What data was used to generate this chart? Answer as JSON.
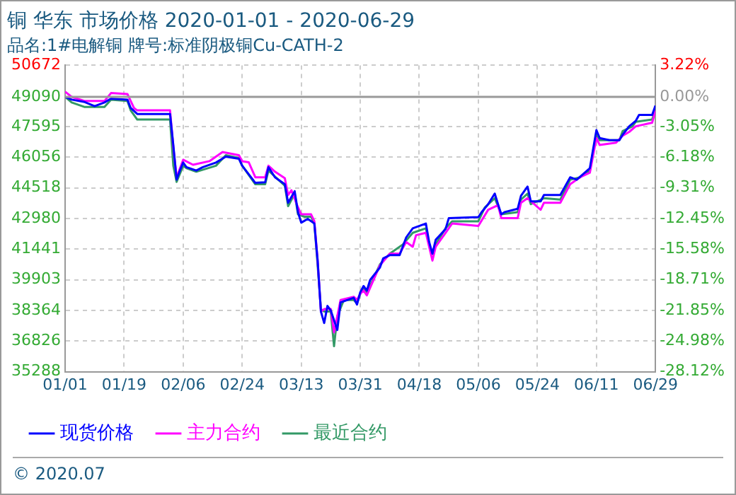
{
  "chart_data": {
    "type": "line",
    "title": "铜 华东 市场价格 2020-01-01 - 2020-06-29",
    "subtitle": "品名:1#电解铜 牌号:标准阴极铜Cu-CATH-2",
    "annotations": [
      "© 2020.07"
    ],
    "xlim": [
      "2020-01-01",
      "2020-06-29"
    ],
    "xticks": [
      {
        "value": "2020-01-01",
        "label": "01/01"
      },
      {
        "value": "2020-01-19",
        "label": "01/19"
      },
      {
        "value": "2020-02-06",
        "label": "02/06"
      },
      {
        "value": "2020-02-24",
        "label": "02/24"
      },
      {
        "value": "2020-03-13",
        "label": "03/13"
      },
      {
        "value": "2020-03-31",
        "label": "03/31"
      },
      {
        "value": "2020-04-18",
        "label": "04/18"
      },
      {
        "value": "2020-05-06",
        "label": "05/06"
      },
      {
        "value": "2020-05-24",
        "label": "05/24"
      },
      {
        "value": "2020-06-11",
        "label": "06/11"
      },
      {
        "value": "2020-06-29",
        "label": "06/29"
      }
    ],
    "ylim": [
      35288,
      50672
    ],
    "yticks": [
      35288,
      36826,
      38364,
      39903,
      41441,
      42980,
      44518,
      46056,
      47595,
      49090,
      50672
    ],
    "y2lim": [
      -28.12,
      3.22
    ],
    "y2ticks": [
      {
        "value": -28.12,
        "label": "-28.12%"
      },
      {
        "value": -24.98,
        "label": "-24.98%"
      },
      {
        "value": -21.85,
        "label": "-21.85%"
      },
      {
        "value": -18.71,
        "label": "-18.71%"
      },
      {
        "value": -15.58,
        "label": "-15.58%"
      },
      {
        "value": -12.45,
        "label": "-12.45%"
      },
      {
        "value": -9.31,
        "label": "-9.31%"
      },
      {
        "value": -6.18,
        "label": "-6.18%"
      },
      {
        "value": -3.05,
        "label": "-3.05%"
      },
      {
        "value": 0,
        "label": "0.00%"
      },
      {
        "value": 3.22,
        "label": "3.22%"
      }
    ],
    "ref_lines": [
      {
        "axis": "y2",
        "value": 0,
        "color": "#999999",
        "line_style": "solid"
      }
    ],
    "grid": true,
    "legend": "bottom",
    "marker": "none",
    "line_style": "solid",
    "series": [
      {
        "name": "现货价格",
        "color": "#0000ff",
        "x": [
          "2020-01-01",
          "2020-01-03",
          "2020-01-07",
          "2020-01-10",
          "2020-01-13",
          "2020-01-15",
          "2020-01-20",
          "2020-01-21",
          "2020-01-23",
          "2020-02-02",
          "2020-02-03",
          "2020-02-04",
          "2020-02-05",
          "2020-02-06",
          "2020-02-07",
          "2020-02-10",
          "2020-02-12",
          "2020-02-16",
          "2020-02-19",
          "2020-02-23",
          "2020-02-24",
          "2020-02-28",
          "2020-03-02",
          "2020-03-03",
          "2020-03-05",
          "2020-03-08",
          "2020-03-09",
          "2020-03-11",
          "2020-03-12",
          "2020-03-13",
          "2020-03-15",
          "2020-03-17",
          "2020-03-18",
          "2020-03-19",
          "2020-03-20",
          "2020-03-21",
          "2020-03-22",
          "2020-03-24",
          "2020-03-25",
          "2020-03-29",
          "2020-03-30",
          "2020-03-31",
          "2020-04-01",
          "2020-04-02",
          "2020-04-03",
          "2020-04-06",
          "2020-04-07",
          "2020-04-09",
          "2020-04-12",
          "2020-04-14",
          "2020-04-16",
          "2020-04-20",
          "2020-04-21",
          "2020-04-22",
          "2020-04-23",
          "2020-04-26",
          "2020-04-27",
          "2020-05-06",
          "2020-05-07",
          "2020-05-09",
          "2020-05-11",
          "2020-05-12",
          "2020-05-13",
          "2020-05-14",
          "2020-05-18",
          "2020-05-19",
          "2020-05-21",
          "2020-05-22",
          "2020-05-25",
          "2020-05-26",
          "2020-05-31",
          "2020-06-03",
          "2020-06-05",
          "2020-06-09",
          "2020-06-11",
          "2020-06-12",
          "2020-06-15",
          "2020-06-18",
          "2020-06-19",
          "2020-06-21",
          "2020-06-23",
          "2020-06-24",
          "2020-06-28",
          "2020-06-29"
        ],
        "values": [
          49090,
          48950,
          48830,
          48620,
          48810,
          49000,
          48950,
          48530,
          48230,
          48230,
          46670,
          44930,
          45390,
          45790,
          45560,
          45390,
          45560,
          45790,
          46090,
          45980,
          45630,
          44770,
          44800,
          45560,
          45050,
          44700,
          43770,
          44350,
          43300,
          42770,
          42960,
          42730,
          40870,
          38310,
          37730,
          38590,
          38360,
          37380,
          38770,
          39000,
          38660,
          39280,
          39590,
          39360,
          39890,
          40520,
          40980,
          41140,
          41140,
          42030,
          42490,
          42730,
          41800,
          41210,
          41910,
          42450,
          43000,
          43050,
          43300,
          43700,
          44230,
          43700,
          43190,
          43300,
          43470,
          44120,
          44580,
          43840,
          43840,
          44160,
          44160,
          45050,
          44930,
          45510,
          47420,
          47020,
          46910,
          46910,
          47190,
          47610,
          47880,
          48180,
          48180,
          48650
        ]
      },
      {
        "name": "主力合约",
        "color": "#ff00ff",
        "x": [
          "2020-01-01",
          "2020-01-03",
          "2020-01-07",
          "2020-01-13",
          "2020-01-15",
          "2020-01-20",
          "2020-01-22",
          "2020-01-23",
          "2020-02-02",
          "2020-02-03",
          "2020-02-04",
          "2020-02-06",
          "2020-02-09",
          "2020-02-14",
          "2020-02-18",
          "2020-02-23",
          "2020-02-24",
          "2020-02-26",
          "2020-02-28",
          "2020-03-02",
          "2020-03-03",
          "2020-03-05",
          "2020-03-08",
          "2020-03-09",
          "2020-03-10",
          "2020-03-12",
          "2020-03-13",
          "2020-03-16",
          "2020-03-17",
          "2020-03-18",
          "2020-03-19",
          "2020-03-20",
          "2020-03-22",
          "2020-03-23",
          "2020-03-25",
          "2020-03-29",
          "2020-03-30",
          "2020-03-31",
          "2020-04-01",
          "2020-04-02",
          "2020-04-06",
          "2020-04-09",
          "2020-04-12",
          "2020-04-14",
          "2020-04-16",
          "2020-04-17",
          "2020-04-20",
          "2020-04-21",
          "2020-04-22",
          "2020-04-23",
          "2020-04-26",
          "2020-04-28",
          "2020-05-06",
          "2020-05-09",
          "2020-05-12",
          "2020-05-13",
          "2020-05-18",
          "2020-05-19",
          "2020-05-21",
          "2020-05-25",
          "2020-05-26",
          "2020-05-31",
          "2020-06-03",
          "2020-06-06",
          "2020-06-09",
          "2020-06-11",
          "2020-06-12",
          "2020-06-17",
          "2020-06-19",
          "2020-06-21",
          "2020-06-23",
          "2020-06-28",
          "2020-06-29"
        ],
        "values": [
          49350,
          49090,
          48880,
          48880,
          49280,
          49230,
          48530,
          48410,
          48410,
          46560,
          45050,
          45930,
          45680,
          45860,
          46320,
          46160,
          45860,
          45800,
          45050,
          45050,
          45630,
          45330,
          45000,
          44160,
          44400,
          43540,
          43190,
          43190,
          42840,
          40870,
          38310,
          38430,
          38430,
          37260,
          38890,
          39050,
          38890,
          39200,
          39360,
          39120,
          40630,
          41210,
          41210,
          41800,
          41560,
          42140,
          42260,
          41560,
          40870,
          41560,
          42260,
          42730,
          42610,
          43420,
          43650,
          43000,
          43000,
          43770,
          44000,
          43420,
          43770,
          43770,
          44700,
          45050,
          45280,
          47020,
          46670,
          46790,
          47140,
          47330,
          47610,
          47790,
          48410
        ]
      },
      {
        "name": "最近合约",
        "color": "#339966",
        "x": [
          "2020-01-01",
          "2020-01-03",
          "2020-01-07",
          "2020-01-13",
          "2020-01-15",
          "2020-01-20",
          "2020-01-21",
          "2020-01-23",
          "2020-02-02",
          "2020-02-03",
          "2020-02-04",
          "2020-02-06",
          "2020-02-07",
          "2020-02-10",
          "2020-02-16",
          "2020-02-19",
          "2020-02-23",
          "2020-02-24",
          "2020-02-28",
          "2020-03-02",
          "2020-03-03",
          "2020-03-06",
          "2020-03-08",
          "2020-03-09",
          "2020-03-11",
          "2020-03-12",
          "2020-03-14",
          "2020-03-16",
          "2020-03-17",
          "2020-03-18",
          "2020-03-19",
          "2020-03-20",
          "2020-03-22",
          "2020-03-23",
          "2020-03-24",
          "2020-03-26",
          "2020-03-29",
          "2020-03-30",
          "2020-03-31",
          "2020-04-01",
          "2020-04-02",
          "2020-04-06",
          "2020-04-09",
          "2020-04-13",
          "2020-04-16",
          "2020-04-20",
          "2020-04-21",
          "2020-04-22",
          "2020-04-23",
          "2020-04-26",
          "2020-04-28",
          "2020-05-06",
          "2020-05-08",
          "2020-05-11",
          "2020-05-13",
          "2020-05-18",
          "2020-05-19",
          "2020-05-21",
          "2020-05-22",
          "2020-05-26",
          "2020-05-31",
          "2020-06-03",
          "2020-06-06",
          "2020-06-09",
          "2020-06-11",
          "2020-06-12",
          "2020-06-18",
          "2020-06-19",
          "2020-06-22",
          "2020-06-23",
          "2020-06-28",
          "2020-06-29"
        ],
        "values": [
          49090,
          48810,
          48580,
          48580,
          48950,
          48880,
          48410,
          47950,
          47950,
          45630,
          44820,
          45630,
          45510,
          45330,
          45630,
          46160,
          46020,
          45630,
          44700,
          44700,
          45390,
          44930,
          44630,
          43600,
          44230,
          43190,
          43070,
          43070,
          42730,
          40630,
          38430,
          38310,
          38310,
          36570,
          38080,
          38890,
          38890,
          38720,
          39200,
          39470,
          39240,
          40680,
          41210,
          41680,
          42260,
          42490,
          41680,
          41210,
          41680,
          42490,
          42840,
          42840,
          43540,
          44000,
          43190,
          43300,
          43930,
          44230,
          43700,
          44000,
          43930,
          44930,
          45050,
          45390,
          47260,
          46910,
          46910,
          47370,
          47610,
          47840,
          47950,
          48480
        ]
      }
    ]
  }
}
